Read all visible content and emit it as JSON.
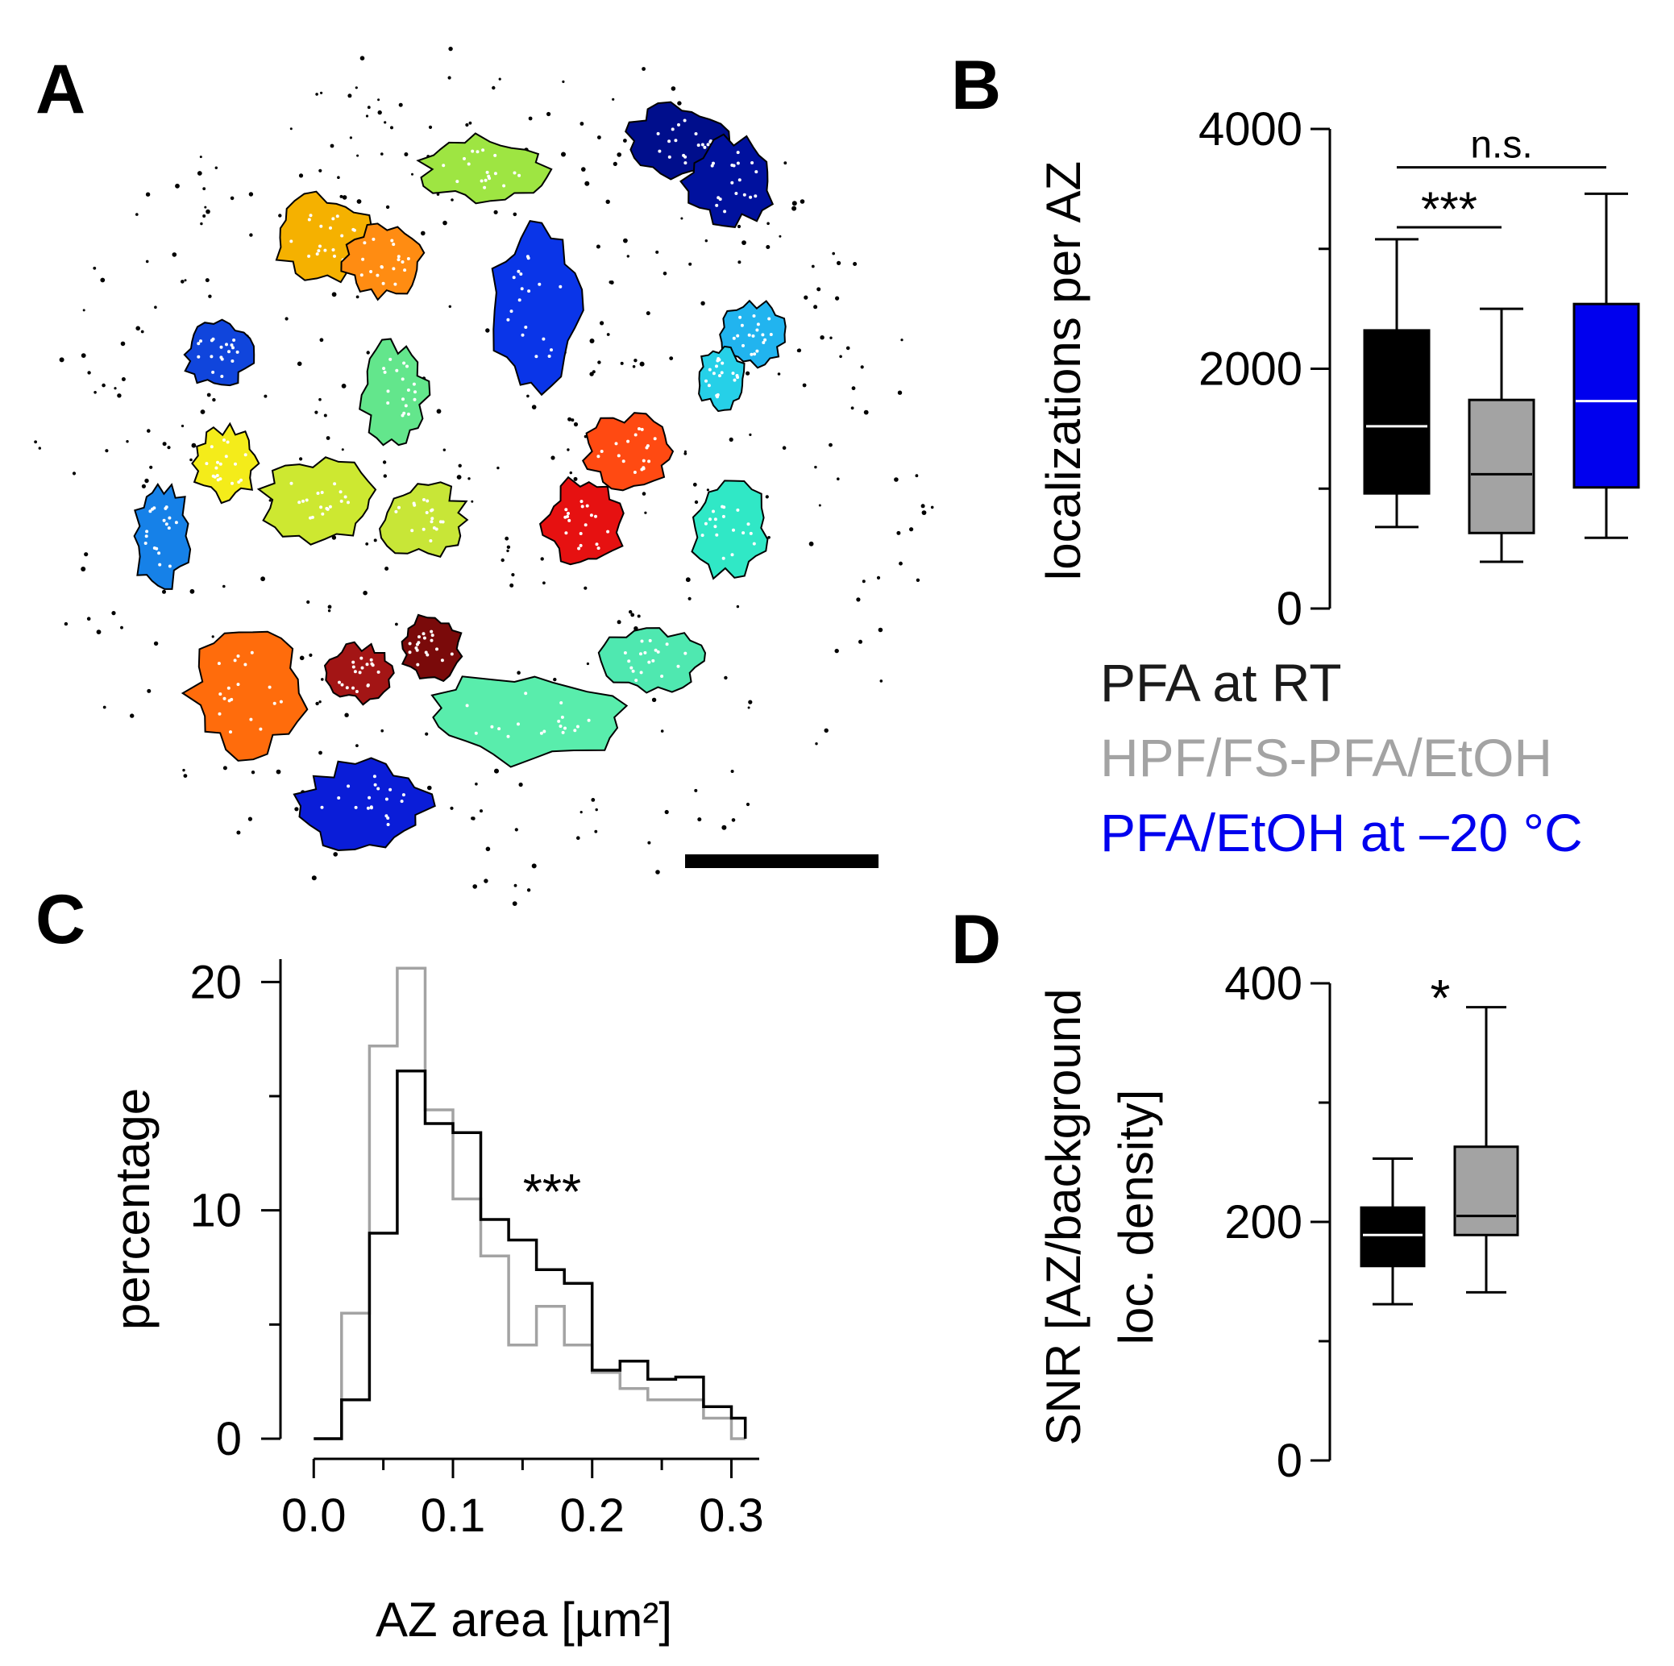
{
  "panels": {
    "A": {
      "letter": "A",
      "description_color_scale": "jet"
    },
    "B": {
      "letter": "B"
    },
    "C": {
      "letter": "C"
    },
    "D": {
      "letter": "D"
    }
  },
  "legend": [
    {
      "label": "PFA at RT",
      "color": "#1a1a1a"
    },
    {
      "label": "HPF/FS-PFA/EtOH",
      "color": "#a3a3a3"
    },
    {
      "label": "PFA/EtOH at –20 °C",
      "color": "#0000ee"
    }
  ],
  "chart_data": [
    {
      "panel": "A",
      "type": "scatter",
      "title": "",
      "note": "SMLM localization clusters (active zones), colour-coded; scale bar shown",
      "scale_bar": "present"
    },
    {
      "panel": "B",
      "type": "box",
      "ylabel": "localizations per AZ",
      "ylim": [
        0,
        4000
      ],
      "yticks": [
        0,
        2000,
        4000
      ],
      "yticks_labeled": [
        0,
        2000,
        4000
      ],
      "yticks_minor": [
        1000,
        3000
      ],
      "groups": [
        {
          "name": "PFA at RT",
          "color": "#000000",
          "median_color": "#ffffff",
          "whisker_low": 680,
          "q1": 960,
          "median": 1520,
          "q3": 2320,
          "whisker_high": 3080
        },
        {
          "name": "HPF/FS-PFA/EtOH",
          "color": "#a3a3a3",
          "median_color": "#000000",
          "whisker_low": 390,
          "q1": 630,
          "median": 1120,
          "q3": 1740,
          "whisker_high": 2500
        },
        {
          "name": "PFA/EtOH at –20 °C",
          "color": "#0000ee",
          "median_color": "#ffffff",
          "whisker_low": 590,
          "q1": 1010,
          "median": 1730,
          "q3": 2540,
          "whisker_high": 3460
        }
      ],
      "significance": [
        {
          "from": 0,
          "to": 1,
          "label": "***",
          "level": 3180
        },
        {
          "from": 0,
          "to": 2,
          "label": "n.s.",
          "level": 3680
        }
      ]
    },
    {
      "panel": "C",
      "type": "histogram",
      "xlabel": "AZ area [µm²]",
      "ylabel": "percentage",
      "xlim": [
        -0.01,
        0.32
      ],
      "ylim": [
        0,
        21
      ],
      "xticks": [
        0.0,
        0.1,
        0.2,
        0.3
      ],
      "xtick_labels": [
        "0.0",
        "0.1",
        "0.2",
        "0.3"
      ],
      "yticks": [
        0,
        10,
        20
      ],
      "ytick_labels": [
        "0",
        "10",
        "20"
      ],
      "bin_edges": [
        0,
        0.02,
        0.04,
        0.06,
        0.08,
        0.1,
        0.12,
        0.14,
        0.16,
        0.18,
        0.2,
        0.22,
        0.24,
        0.26,
        0.28,
        0.3,
        0.31
      ],
      "series": [
        {
          "name": "PFA at RT",
          "color": "#000000",
          "values": [
            0,
            1.7,
            9.0,
            16.1,
            13.8,
            13.4,
            9.6,
            8.7,
            7.4,
            6.8,
            3.0,
            3.4,
            2.6,
            2.7,
            1.4,
            0.9
          ]
        },
        {
          "name": "HPF/FS-PFA/EtOH",
          "color": "#a3a3a3",
          "values": [
            0,
            5.5,
            17.2,
            20.6,
            14.4,
            10.5,
            8.0,
            4.1,
            5.8,
            4.1,
            2.9,
            2.2,
            1.7,
            1.7,
            0.9,
            0
          ]
        }
      ],
      "annotation": "***"
    },
    {
      "panel": "D",
      "type": "box",
      "ylabel_line1": "SNR [AZ/background",
      "ylabel_line2": "loc. density]",
      "ylim": [
        0,
        400
      ],
      "yticks_labeled": [
        0,
        200,
        400
      ],
      "yticks_minor": [
        100,
        300
      ],
      "groups": [
        {
          "name": "PFA at RT",
          "color": "#000000",
          "median_color": "#ffffff",
          "whisker_low": 131,
          "q1": 163,
          "median": 189,
          "q3": 212,
          "whisker_high": 253
        },
        {
          "name": "HPF/FS-PFA/EtOH",
          "color": "#a3a3a3",
          "median_color": "#000000",
          "whisker_low": 141,
          "q1": 189,
          "median": 205,
          "q3": 263,
          "whisker_high": 380
        }
      ],
      "annotation": "*"
    }
  ]
}
